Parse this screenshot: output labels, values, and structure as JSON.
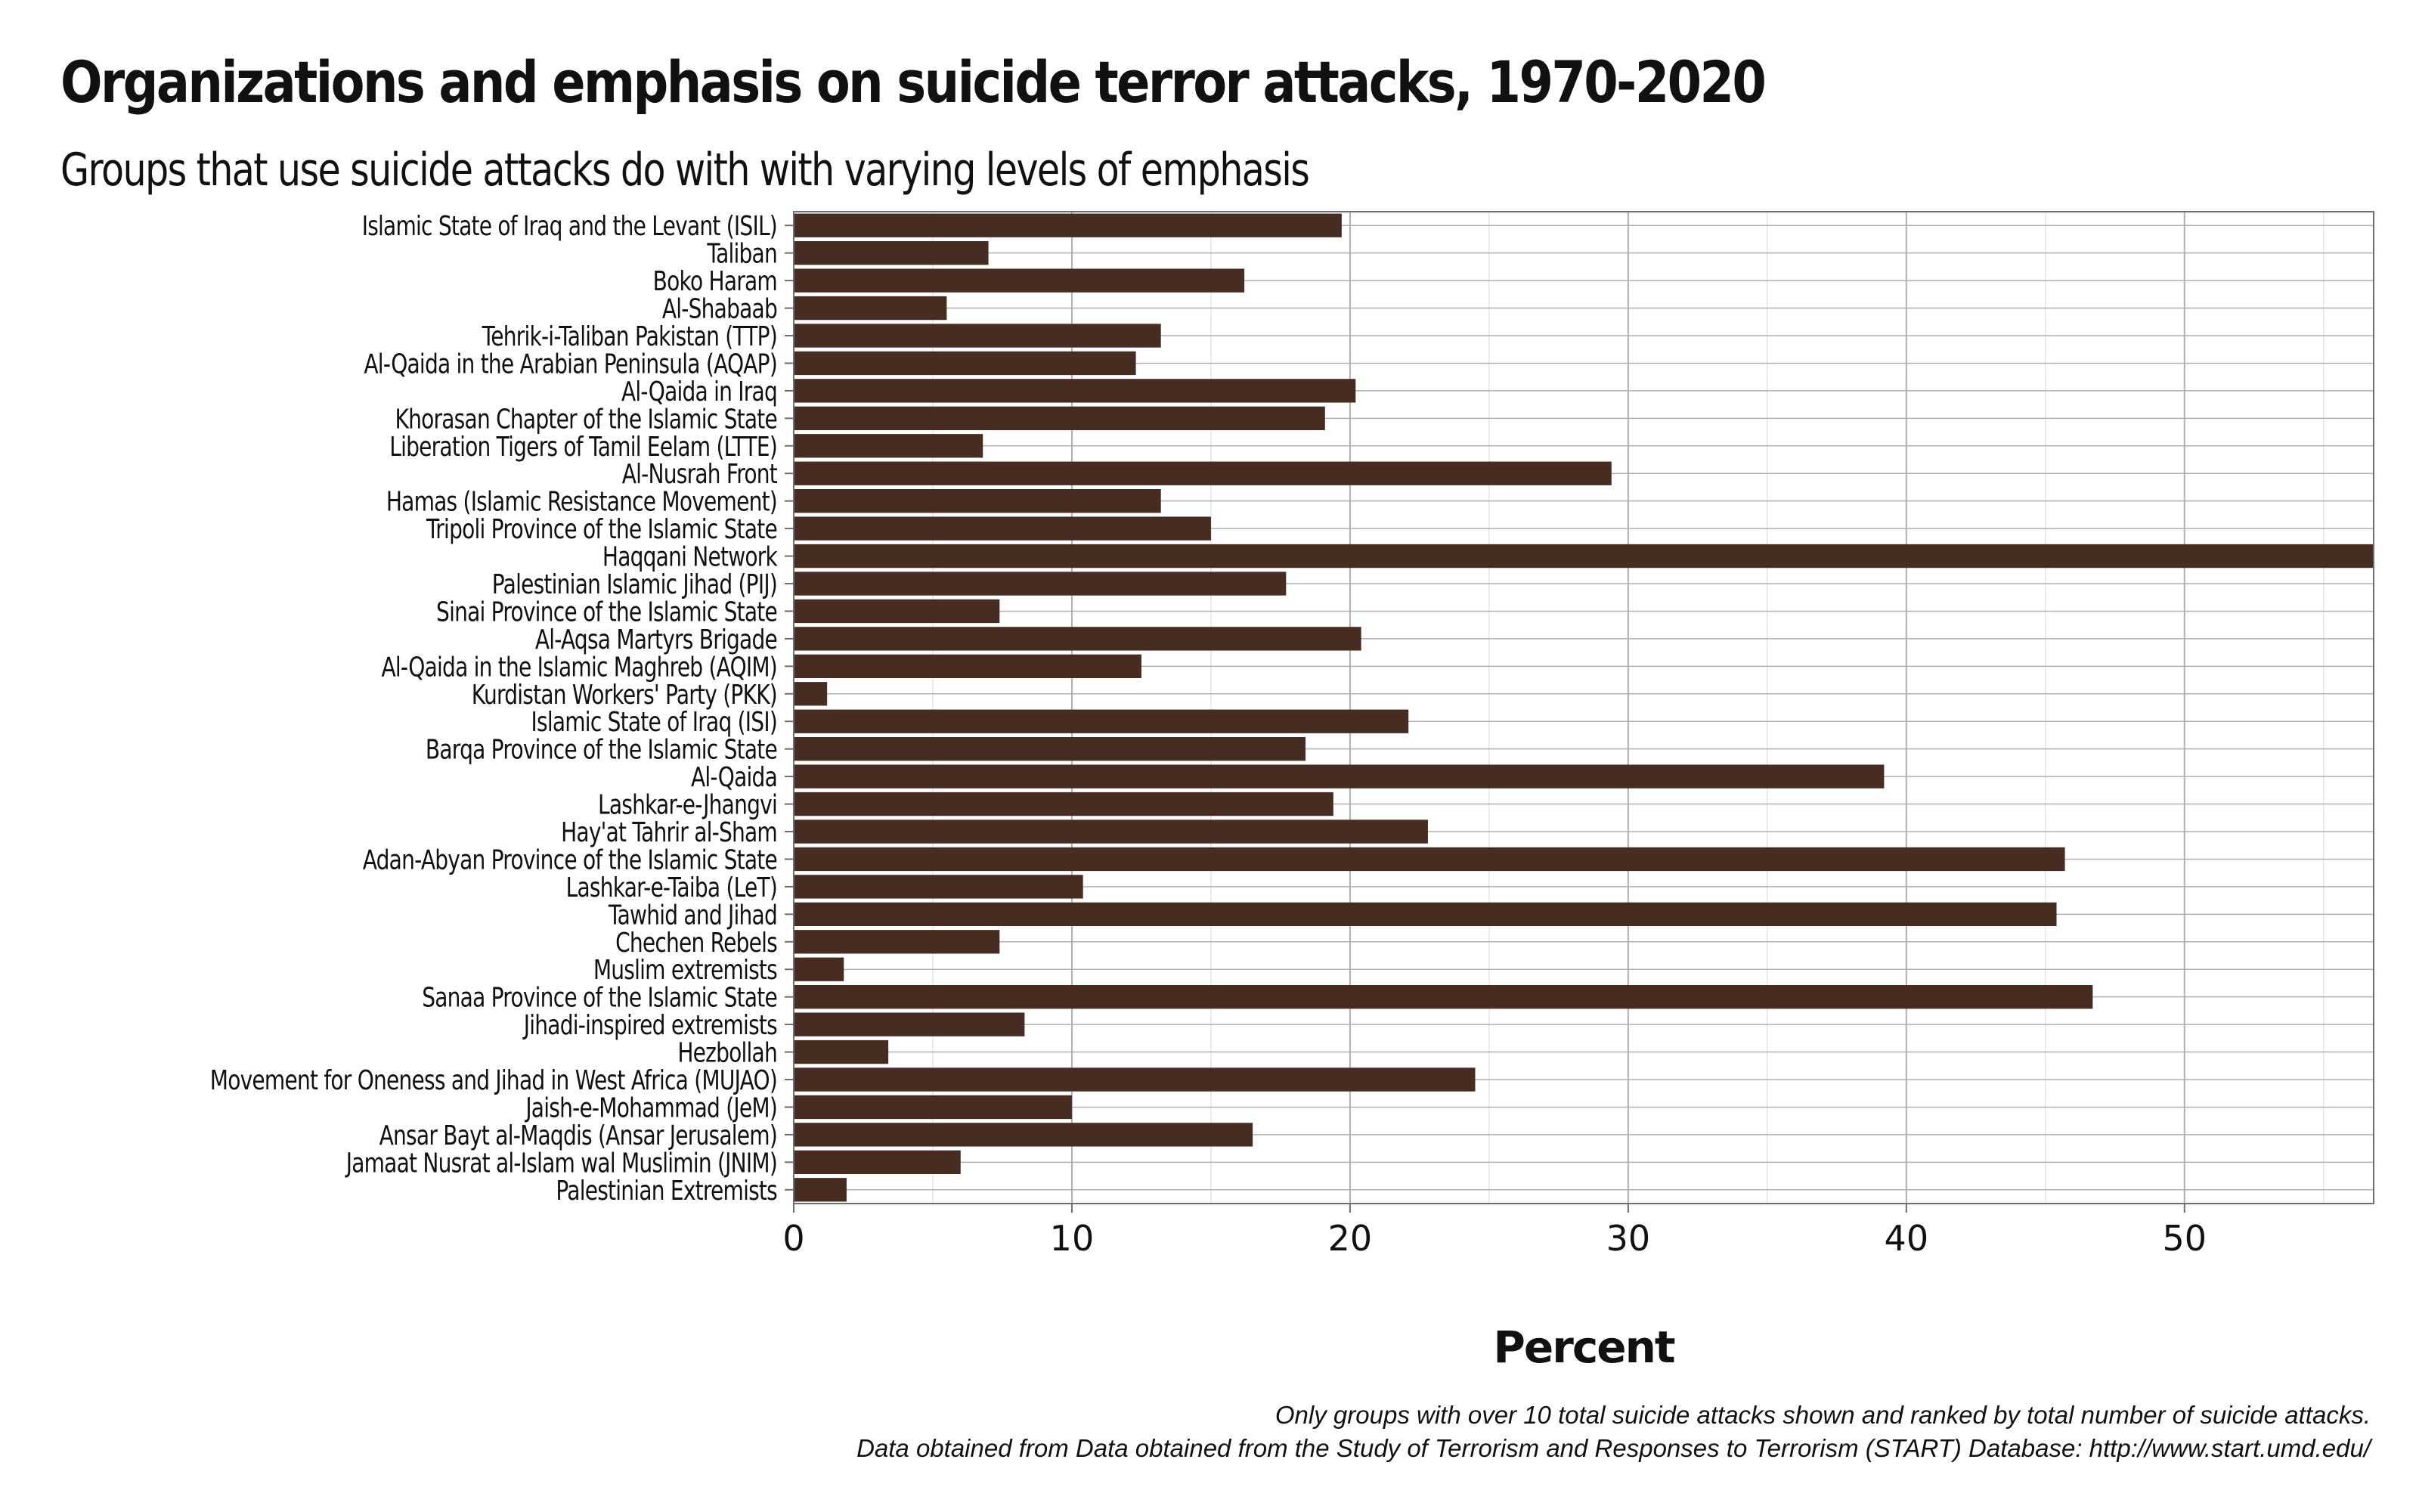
{
  "title": "Organizations and emphasis on suicide terror attacks, 1970-2020",
  "subtitle": "Groups that use suicide attacks do with with varying levels of emphasis",
  "caption": {
    "line1": "Only groups with over 10 total suicide attacks shown and ranked by total number of suicide attacks.",
    "line2": "Data obtained from Data obtained from the Study of Terrorism and Responses to Terrorism (START) Database: http://www.start.umd.edu/"
  },
  "colors": {
    "bar": "#472D21",
    "grid": "#B0B0B0",
    "minor_grid": "#E4E4E4",
    "border": "#6E6E6E",
    "text": "#111111"
  },
  "chart_data": {
    "type": "bar",
    "orientation": "horizontal",
    "title": "Organizations and emphasis on suicide terror attacks, 1970-2020",
    "subtitle": "Groups that use suicide attacks do with with varying levels of emphasis",
    "xlabel": "Percent",
    "ylabel": "",
    "xlim": [
      0,
      56.8
    ],
    "xticks": [
      0,
      10,
      20,
      30,
      40,
      50
    ],
    "grid": true,
    "categories": [
      "Islamic State of Iraq and the Levant (ISIL)",
      "Taliban",
      "Boko Haram",
      "Al-Shabaab",
      "Tehrik-i-Taliban Pakistan (TTP)",
      "Al-Qaida in the Arabian Peninsula (AQAP)",
      "Al-Qaida in Iraq",
      "Khorasan Chapter of the Islamic State",
      "Liberation Tigers of Tamil Eelam (LTTE)",
      "Al-Nusrah Front",
      "Hamas (Islamic Resistance Movement)",
      "Tripoli Province of the Islamic State",
      "Haqqani Network",
      "Palestinian Islamic Jihad (PIJ)",
      "Sinai Province of the Islamic State",
      "Al-Aqsa Martyrs Brigade",
      "Al-Qaida in the Islamic Maghreb (AQIM)",
      "Kurdistan Workers' Party (PKK)",
      "Islamic State of Iraq (ISI)",
      "Barqa Province of the Islamic State",
      "Al-Qaida",
      "Lashkar-e-Jhangvi",
      "Hay'at Tahrir al-Sham",
      "Adan-Abyan Province of the Islamic State",
      "Lashkar-e-Taiba (LeT)",
      "Tawhid and Jihad",
      "Chechen Rebels",
      "Muslim extremists",
      "Sanaa Province of the Islamic State",
      "Jihadi-inspired extremists",
      "Hezbollah",
      "Movement for Oneness and Jihad in West Africa (MUJAO)",
      "Jaish-e-Mohammad (JeM)",
      "Ansar Bayt al-Maqdis (Ansar Jerusalem)",
      "Jamaat Nusrat al-Islam wal Muslimin (JNIM)",
      "Palestinian Extremists"
    ],
    "values": [
      19.7,
      7.0,
      16.2,
      5.5,
      13.2,
      12.3,
      20.2,
      19.1,
      6.8,
      29.4,
      13.2,
      15.0,
      56.8,
      17.7,
      7.4,
      20.4,
      12.5,
      1.2,
      22.1,
      18.4,
      39.2,
      19.4,
      22.8,
      45.7,
      10.4,
      45.4,
      7.4,
      1.8,
      46.7,
      8.3,
      3.4,
      24.5,
      10.0,
      16.5,
      6.0,
      1.9
    ]
  }
}
